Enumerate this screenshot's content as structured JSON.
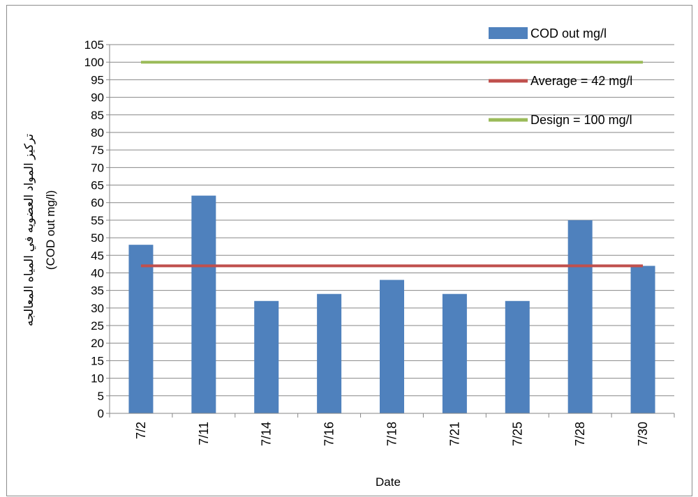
{
  "chart_data": {
    "type": "bar",
    "categories": [
      "7/2",
      "7/11",
      "7/14",
      "7/16",
      "7/18",
      "7/21",
      "7/25",
      "7/28",
      "7/30"
    ],
    "series": [
      {
        "name": "COD out mg/l",
        "type": "bar",
        "color": "#4F81BD",
        "values": [
          48,
          62,
          32,
          34,
          38,
          34,
          32,
          55,
          42
        ]
      },
      {
        "name": "Average = 42 mg/l",
        "type": "line",
        "color": "#C0504D",
        "values": [
          42,
          42,
          42,
          42,
          42,
          42,
          42,
          42,
          42
        ]
      },
      {
        "name": "Design = 100 mg/l",
        "type": "line",
        "color": "#9BBB59",
        "values": [
          100,
          100,
          100,
          100,
          100,
          100,
          100,
          100,
          100
        ]
      }
    ],
    "xlabel": "Date",
    "ylabel_line1": "تركيز المواد العضويه في المياه المعالجه",
    "ylabel_line2": "(COD out mg/l)",
    "ylim": [
      0,
      105
    ],
    "ytick_step": 5,
    "grid": true,
    "legend_position": "top-right"
  }
}
